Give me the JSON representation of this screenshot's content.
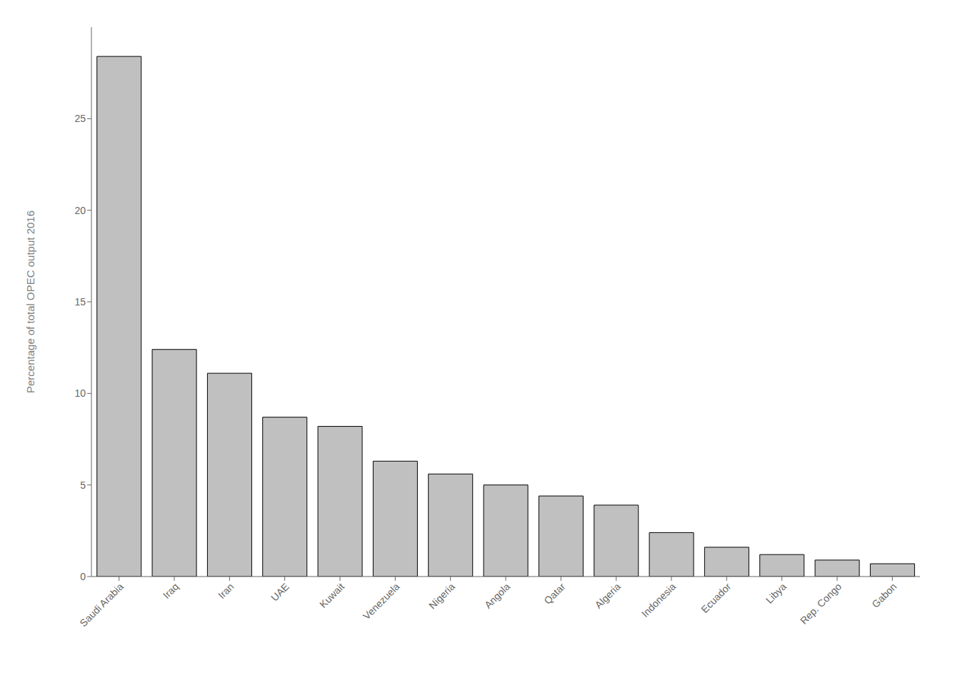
{
  "chart_data": {
    "type": "bar",
    "categories": [
      "Saudi Arabia",
      "Iraq",
      "Iran",
      "UAE",
      "Kuwait",
      "Venezuela",
      "Nigeria",
      "Angola",
      "Qatar",
      "Algeria",
      "Indonesia",
      "Ecuador",
      "Libya",
      "Rep. Congo",
      "Gabon"
    ],
    "values": [
      28.4,
      12.4,
      11.1,
      8.7,
      8.2,
      6.3,
      5.6,
      5.0,
      4.4,
      3.9,
      2.4,
      1.6,
      1.2,
      0.9,
      0.7
    ],
    "color": "#c0c0c0",
    "ylabel": "Percentage of total OPEC output 2016",
    "ylim": [
      0,
      30
    ],
    "yticks": [
      0,
      5,
      10,
      15,
      20,
      25
    ],
    "grid": false
  }
}
